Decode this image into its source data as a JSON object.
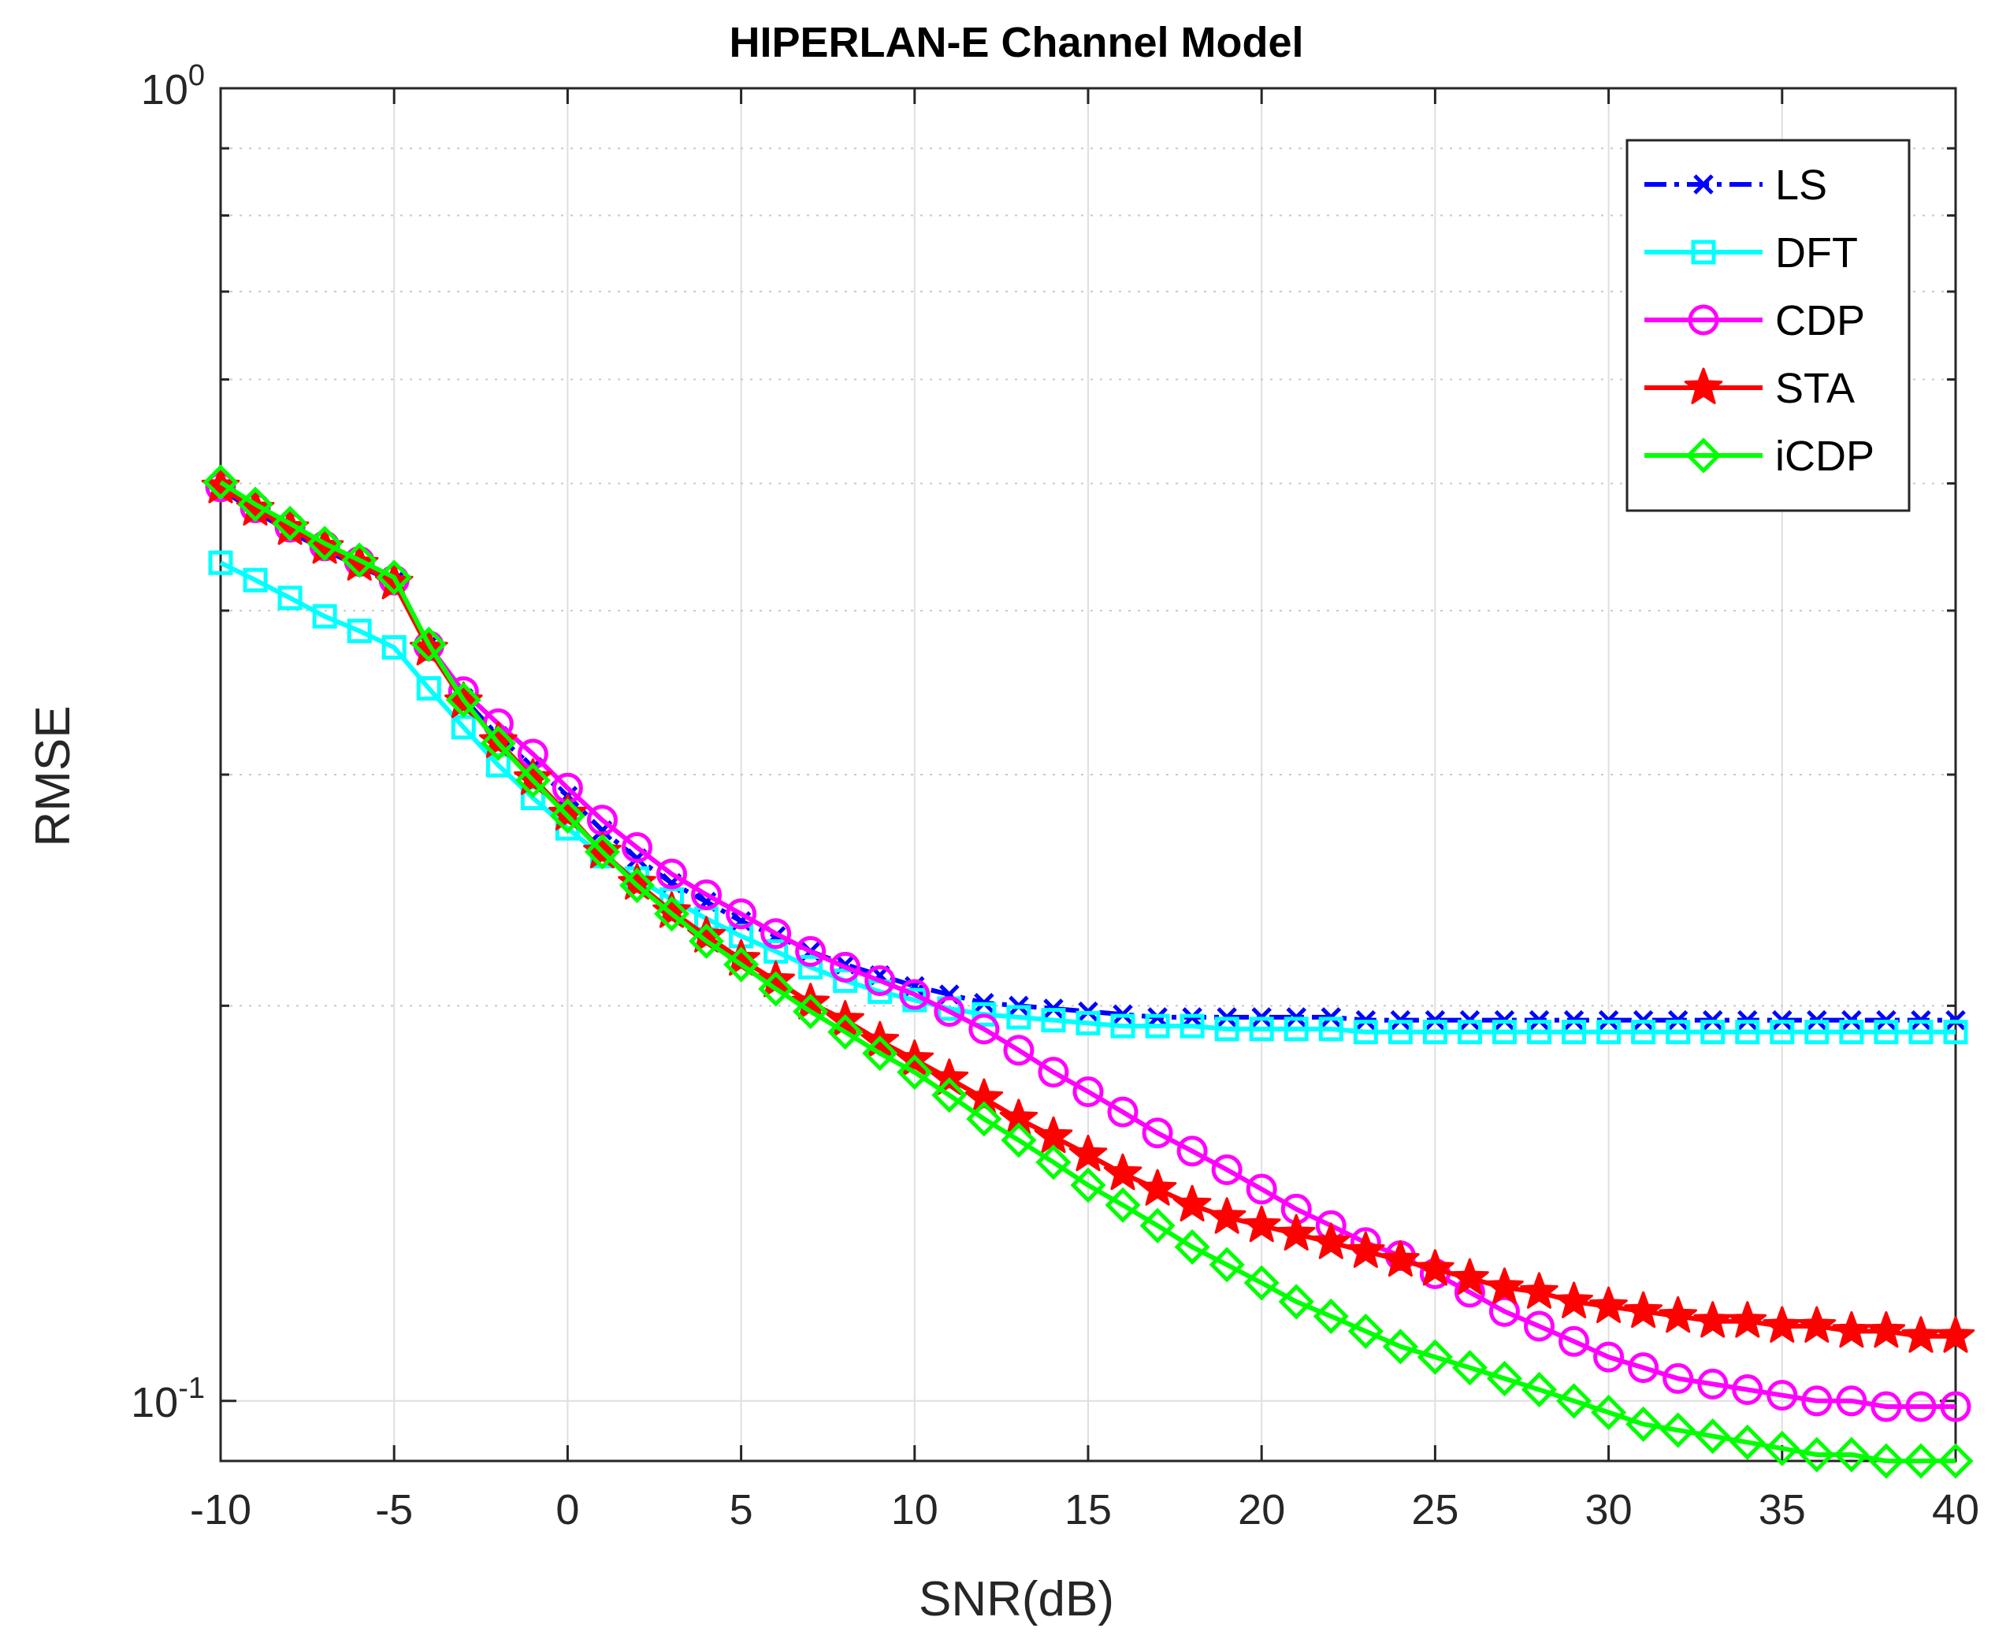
{
  "chart_data": {
    "type": "line",
    "title": "HIPERLAN-E Channel Model",
    "xlabel": "SNR(dB)",
    "ylabel": "RMSE",
    "xlim": [
      -10,
      40
    ],
    "ylim": [
      0.09,
      1
    ],
    "yscale": "log",
    "grid": true,
    "legend_position": "top-right",
    "x_ticks": [
      -10,
      -5,
      0,
      5,
      10,
      15,
      20,
      25,
      30,
      35,
      40
    ],
    "x_tick_labels": [
      "-10",
      "-5",
      "0",
      "5",
      "10",
      "15",
      "20",
      "25",
      "30",
      "35",
      "40"
    ],
    "y_tick_labels": [
      {
        "value": 1,
        "base": "10",
        "exp": "0"
      },
      {
        "value": 0.1,
        "base": "10",
        "exp": "-1"
      }
    ],
    "x": [
      -10,
      -9,
      -8,
      -7,
      -6,
      -5,
      -4,
      -3,
      -2,
      -1,
      0,
      1,
      2,
      3,
      4,
      5,
      6,
      7,
      8,
      9,
      10,
      11,
      12,
      13,
      14,
      15,
      16,
      17,
      18,
      19,
      20,
      21,
      22,
      23,
      24,
      25,
      26,
      27,
      28,
      29,
      30,
      31,
      32,
      33,
      34,
      35,
      36,
      37,
      38,
      39,
      40
    ],
    "series": [
      {
        "name": "LS",
        "color": "#0000ff",
        "marker": "x",
        "linestyle": "dashdot",
        "values": [
          0.495,
          0.476,
          0.459,
          0.445,
          0.432,
          0.421,
          0.377,
          0.343,
          0.321,
          0.304,
          0.289,
          0.272,
          0.259,
          0.248,
          0.24,
          0.232,
          0.226,
          0.22,
          0.215,
          0.211,
          0.207,
          0.204,
          0.201,
          0.2,
          0.199,
          0.198,
          0.197,
          0.196,
          0.196,
          0.196,
          0.196,
          0.196,
          0.196,
          0.195,
          0.195,
          0.195,
          0.195,
          0.195,
          0.195,
          0.195,
          0.195,
          0.195,
          0.195,
          0.195,
          0.195,
          0.195,
          0.195,
          0.195,
          0.195,
          0.195,
          0.195
        ]
      },
      {
        "name": "DFT",
        "color": "#00ffff",
        "marker": "square",
        "linestyle": "solid",
        "values": [
          0.435,
          0.422,
          0.409,
          0.396,
          0.386,
          0.375,
          0.349,
          0.326,
          0.305,
          0.288,
          0.273,
          0.26,
          0.25,
          0.241,
          0.233,
          0.226,
          0.22,
          0.214,
          0.209,
          0.205,
          0.202,
          0.199,
          0.197,
          0.196,
          0.195,
          0.194,
          0.193,
          0.193,
          0.193,
          0.192,
          0.192,
          0.192,
          0.192,
          0.191,
          0.191,
          0.191,
          0.191,
          0.191,
          0.191,
          0.191,
          0.191,
          0.191,
          0.191,
          0.191,
          0.191,
          0.191,
          0.191,
          0.191,
          0.191,
          0.191,
          0.191
        ]
      },
      {
        "name": "CDP",
        "color": "#ff00ff",
        "marker": "circle",
        "linestyle": "solid",
        "values": [
          0.497,
          0.479,
          0.463,
          0.448,
          0.436,
          0.422,
          0.376,
          0.347,
          0.328,
          0.311,
          0.293,
          0.277,
          0.264,
          0.252,
          0.243,
          0.235,
          0.227,
          0.22,
          0.214,
          0.209,
          0.204,
          0.198,
          0.192,
          0.185,
          0.178,
          0.172,
          0.166,
          0.16,
          0.155,
          0.15,
          0.145,
          0.14,
          0.136,
          0.132,
          0.129,
          0.125,
          0.121,
          0.117,
          0.114,
          0.111,
          0.108,
          0.106,
          0.104,
          0.103,
          0.102,
          0.101,
          0.1,
          0.1,
          0.099,
          0.099,
          0.099
        ]
      },
      {
        "name": "STA",
        "color": "#ff0000",
        "marker": "star",
        "linestyle": "solid",
        "values": [
          0.497,
          0.478,
          0.462,
          0.447,
          0.434,
          0.42,
          0.374,
          0.341,
          0.318,
          0.298,
          0.28,
          0.262,
          0.248,
          0.236,
          0.226,
          0.217,
          0.209,
          0.201,
          0.195,
          0.188,
          0.182,
          0.176,
          0.17,
          0.164,
          0.159,
          0.154,
          0.149,
          0.145,
          0.141,
          0.138,
          0.136,
          0.134,
          0.132,
          0.13,
          0.128,
          0.126,
          0.124,
          0.122,
          0.121,
          0.119,
          0.118,
          0.117,
          0.116,
          0.115,
          0.115,
          0.114,
          0.114,
          0.113,
          0.113,
          0.112,
          0.112
        ]
      },
      {
        "name": "iCDP",
        "color": "#00ff00",
        "marker": "diamond",
        "linestyle": "solid",
        "values": [
          0.501,
          0.482,
          0.466,
          0.45,
          0.437,
          0.424,
          0.377,
          0.342,
          0.317,
          0.297,
          0.279,
          0.262,
          0.247,
          0.235,
          0.224,
          0.215,
          0.206,
          0.198,
          0.191,
          0.184,
          0.178,
          0.171,
          0.164,
          0.158,
          0.152,
          0.146,
          0.141,
          0.136,
          0.131,
          0.127,
          0.123,
          0.119,
          0.116,
          0.113,
          0.11,
          0.108,
          0.106,
          0.104,
          0.102,
          0.1,
          0.098,
          0.096,
          0.095,
          0.094,
          0.093,
          0.092,
          0.091,
          0.091,
          0.09,
          0.09,
          0.09
        ]
      }
    ]
  }
}
